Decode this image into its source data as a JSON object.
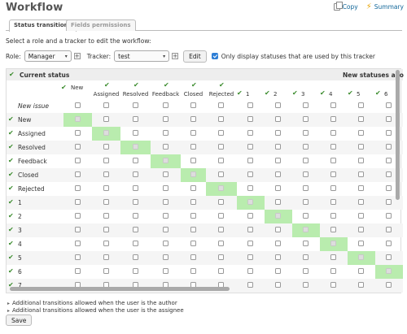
{
  "page": {
    "title": "Workflow",
    "links": {
      "copy": "Copy",
      "summary": "Summary"
    }
  },
  "tabs": [
    {
      "label": "Status transitions",
      "active": true
    },
    {
      "label": "Fields permissions",
      "active": false
    }
  ],
  "instructions": "Select a role and a tracker to edit the workflow:",
  "filters": {
    "role_label": "Role:",
    "role_value": "Manager",
    "tracker_label": "Tracker:",
    "tracker_value": "test",
    "edit_label": "Edit",
    "only_used_label": "Only display statuses that are used by this tracker",
    "only_used_checked": true
  },
  "grid": {
    "current_status_label": "Current status",
    "new_statuses_label": "New statuses allo",
    "columns": [
      "New",
      "Assigned",
      "Resolved",
      "Feedback",
      "Closed",
      "Rejected",
      "1",
      "2",
      "3",
      "4",
      "5",
      "6"
    ],
    "rows": [
      {
        "label": "New issue",
        "italic": true
      },
      {
        "label": "New"
      },
      {
        "label": "Assigned"
      },
      {
        "label": "Resolved"
      },
      {
        "label": "Feedback"
      },
      {
        "label": "Closed"
      },
      {
        "label": "Rejected"
      },
      {
        "label": "1"
      },
      {
        "label": "2"
      },
      {
        "label": "3"
      },
      {
        "label": "4"
      },
      {
        "label": "5"
      },
      {
        "label": "6"
      },
      {
        "label": "7"
      }
    ],
    "diagonal_color": "#b9ecae",
    "check_color": "#3a8b2c"
  },
  "extras": {
    "author": "Additional transitions allowed when the user is the author",
    "assignee": "Additional transitions allowed when the user is the assignee"
  },
  "save_label": "Save"
}
